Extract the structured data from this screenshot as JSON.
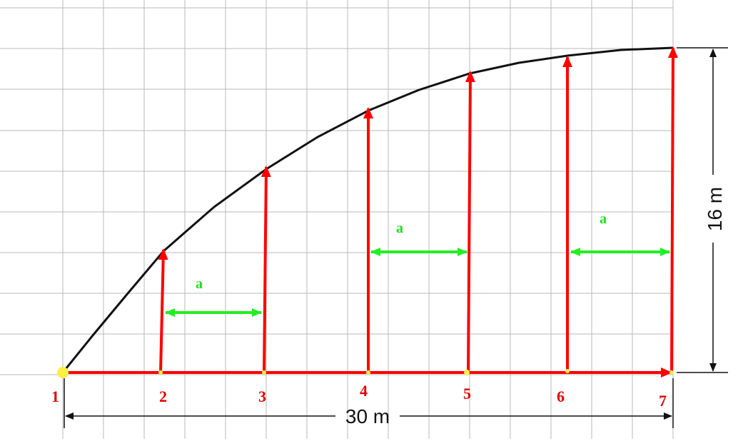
{
  "points": [
    {
      "label": "1"
    },
    {
      "label": "2"
    },
    {
      "label": "3"
    },
    {
      "label": "4"
    },
    {
      "label": "5"
    },
    {
      "label": "6"
    },
    {
      "label": "7"
    }
  ],
  "spacings": [
    "a",
    "a",
    "a"
  ],
  "dimensions": {
    "width": "30 m",
    "height": "16 m"
  }
}
